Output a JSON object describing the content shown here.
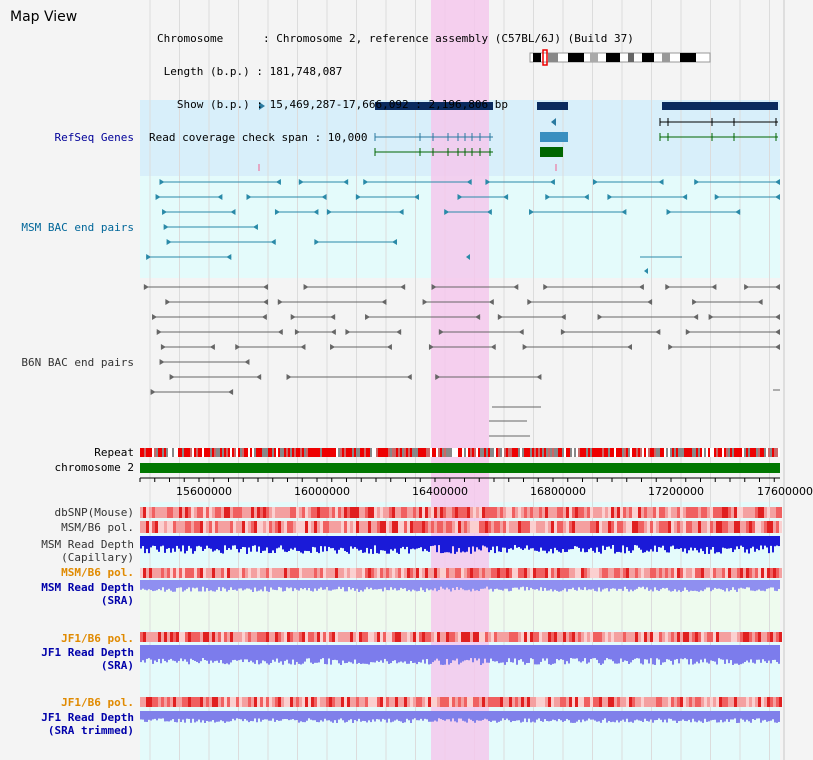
{
  "header": {
    "title": "Map View",
    "info_lines": [
      "Chromosome      : Chromosome 2, reference assembly (C57BL/6J) (Build 37)",
      " Length (b.p.) : 181,748,087",
      "   Show (b.p.) : 15,469,287-17,666,092 : 2,196,806 bp",
      "Read coverage check span : 10,000"
    ]
  },
  "tracks": {
    "refseq": "RefSeq Genes",
    "msm_bac": "MSM BAC end pairs",
    "b6n_bac": "B6N BAC end pairs",
    "repeat": "Repeat",
    "chromosome": "chromosome 2"
  },
  "axis": {
    "ticks": [
      "15600000",
      "16000000",
      "16400000",
      "16800000",
      "17200000",
      "17600000"
    ]
  },
  "lower_tracks": [
    {
      "label": "dbSNP(Mouse)",
      "color": "#333333"
    },
    {
      "label": "MSM/B6 pol.",
      "color": "#333333"
    },
    {
      "label": "MSM Read Depth\n(Capillary)",
      "color": "#333333"
    },
    {
      "label": "MSM/B6 pol.",
      "color": "#e08a00"
    },
    {
      "label": "MSM Read Depth\n(SRA)",
      "color": "#0000aa"
    },
    {
      "label": "JF1/B6 pol.",
      "color": "#e08a00"
    },
    {
      "label": "JF1 Read Depth\n(SRA)",
      "color": "#0000aa"
    },
    {
      "label": "JF1/B6 pol.",
      "color": "#e08a00"
    },
    {
      "label": "JF1 Read Depth\n(SRA trimmed)",
      "color": "#0000aa"
    }
  ],
  "colors": {
    "refseq_label": "#000099",
    "msm_label": "#006699",
    "b6n_label": "#333333",
    "gene_dark": "#0a2a5e",
    "gene_light": "#3a8fc0",
    "gene_green": "#006600",
    "chromosome": "#007700",
    "highlight": "#f4c8ec"
  }
}
